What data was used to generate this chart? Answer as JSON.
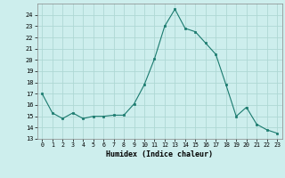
{
  "x": [
    0,
    1,
    2,
    3,
    4,
    5,
    6,
    7,
    8,
    9,
    10,
    11,
    12,
    13,
    14,
    15,
    16,
    17,
    18,
    19,
    20,
    21,
    22,
    23
  ],
  "y": [
    17.0,
    15.3,
    14.8,
    15.3,
    14.8,
    15.0,
    15.0,
    15.1,
    15.1,
    16.1,
    17.8,
    20.1,
    23.0,
    24.5,
    22.8,
    22.5,
    21.5,
    20.5,
    17.8,
    15.0,
    15.8,
    14.3,
    13.8,
    13.5
  ],
  "xlabel": "Humidex (Indice chaleur)",
  "bg_color": "#cdeeed",
  "grid_color": "#aed8d4",
  "line_color": "#1a7a6e",
  "marker_color": "#1a7a6e",
  "xlim": [
    -0.5,
    23.5
  ],
  "ylim": [
    13,
    25
  ],
  "yticks": [
    13,
    14,
    15,
    16,
    17,
    18,
    19,
    20,
    21,
    22,
    23,
    24
  ],
  "xticks": [
    0,
    1,
    2,
    3,
    4,
    5,
    6,
    7,
    8,
    9,
    10,
    11,
    12,
    13,
    14,
    15,
    16,
    17,
    18,
    19,
    20,
    21,
    22,
    23
  ]
}
